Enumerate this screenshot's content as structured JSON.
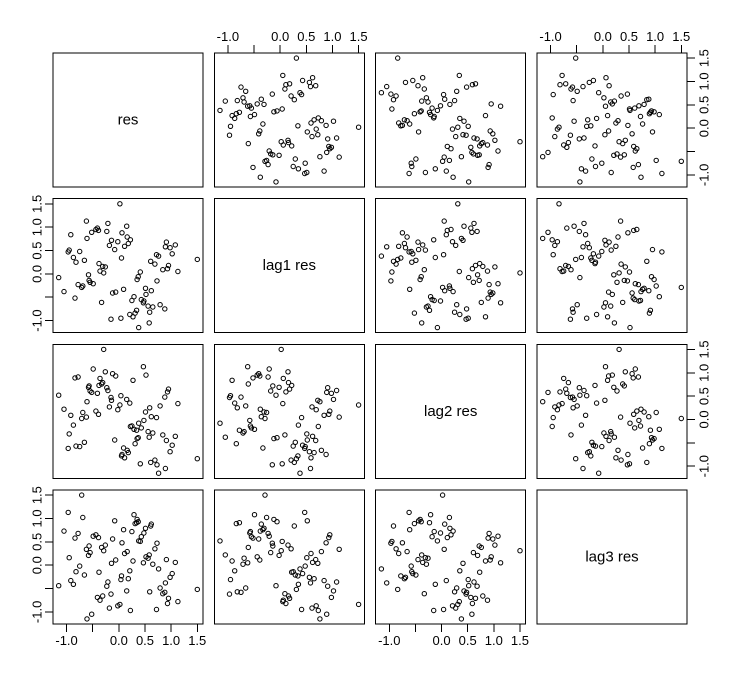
{
  "figure": {
    "background": "#ffffff",
    "foreground": "#000000"
  },
  "chart_data": {
    "type": "scatter",
    "subtype": "pairs-scatterplot-matrix",
    "variables": [
      "res",
      "lag1 res",
      "lag2 res",
      "lag3 res"
    ],
    "axis": {
      "lim": [
        -1.26,
        1.61
      ],
      "ticks": [
        -1.0,
        -0.5,
        0.0,
        0.5,
        1.0,
        1.5
      ],
      "tick_labels": [
        "-1.0",
        "",
        "0.0",
        "0.5",
        "1.0",
        "1.5"
      ]
    },
    "layout_hints": {
      "grid": false,
      "legend": false,
      "top_axis_columns": [
        2,
        4
      ],
      "bottom_axis_columns": [
        1,
        3
      ],
      "left_axis_rows": [
        2,
        4
      ],
      "right_axis_rows": [
        1,
        3
      ]
    },
    "marker": "open-circle",
    "color": "#000000",
    "background": "#ffffff",
    "series": {
      "res": [
        0.12,
        -0.45,
        0.68,
        0.91,
        -0.23,
        -0.78,
        0.34,
        0.05,
        1.13,
        -0.62,
        0.47,
        -0.97,
        -0.15,
        0.73,
        0.22,
        -0.38,
        -1.05,
        0.58,
        0.89,
        -0.52,
        -0.84,
        0.31,
        1.5,
        0.02,
        -0.29,
        -0.71,
        0.65,
        0.18,
        0.95,
        -0.44,
        0.52,
        -0.08,
        -1.15,
        0.38,
        0.76,
        -0.61,
        -0.33,
        0.09,
        0.84,
        -0.92,
        0.27,
        0.61,
        -0.18,
        -0.55,
        0.43,
        1.02,
        0.15,
        -0.26,
        -0.69,
        0.56,
        0.98,
        -0.41,
        -0.12,
        0.35,
        -0.87,
        0.21,
        0.69,
        -0.02,
        -0.58,
        0.48,
        -0.75,
        0.88,
        0.06,
        -0.36,
        0.62,
        1.08,
        -0.21,
        -0.49,
        0.29,
        -0.66,
        0.79,
        0.16,
        -0.31,
        0.51,
        -0.95,
        0.04,
        0.41,
        0.72,
        -0.14,
        -0.57,
        0.25,
        -0.82,
        0.59,
        0.11,
        0.93,
        -0.39,
        -0.06,
        0.37
      ]
    }
  }
}
